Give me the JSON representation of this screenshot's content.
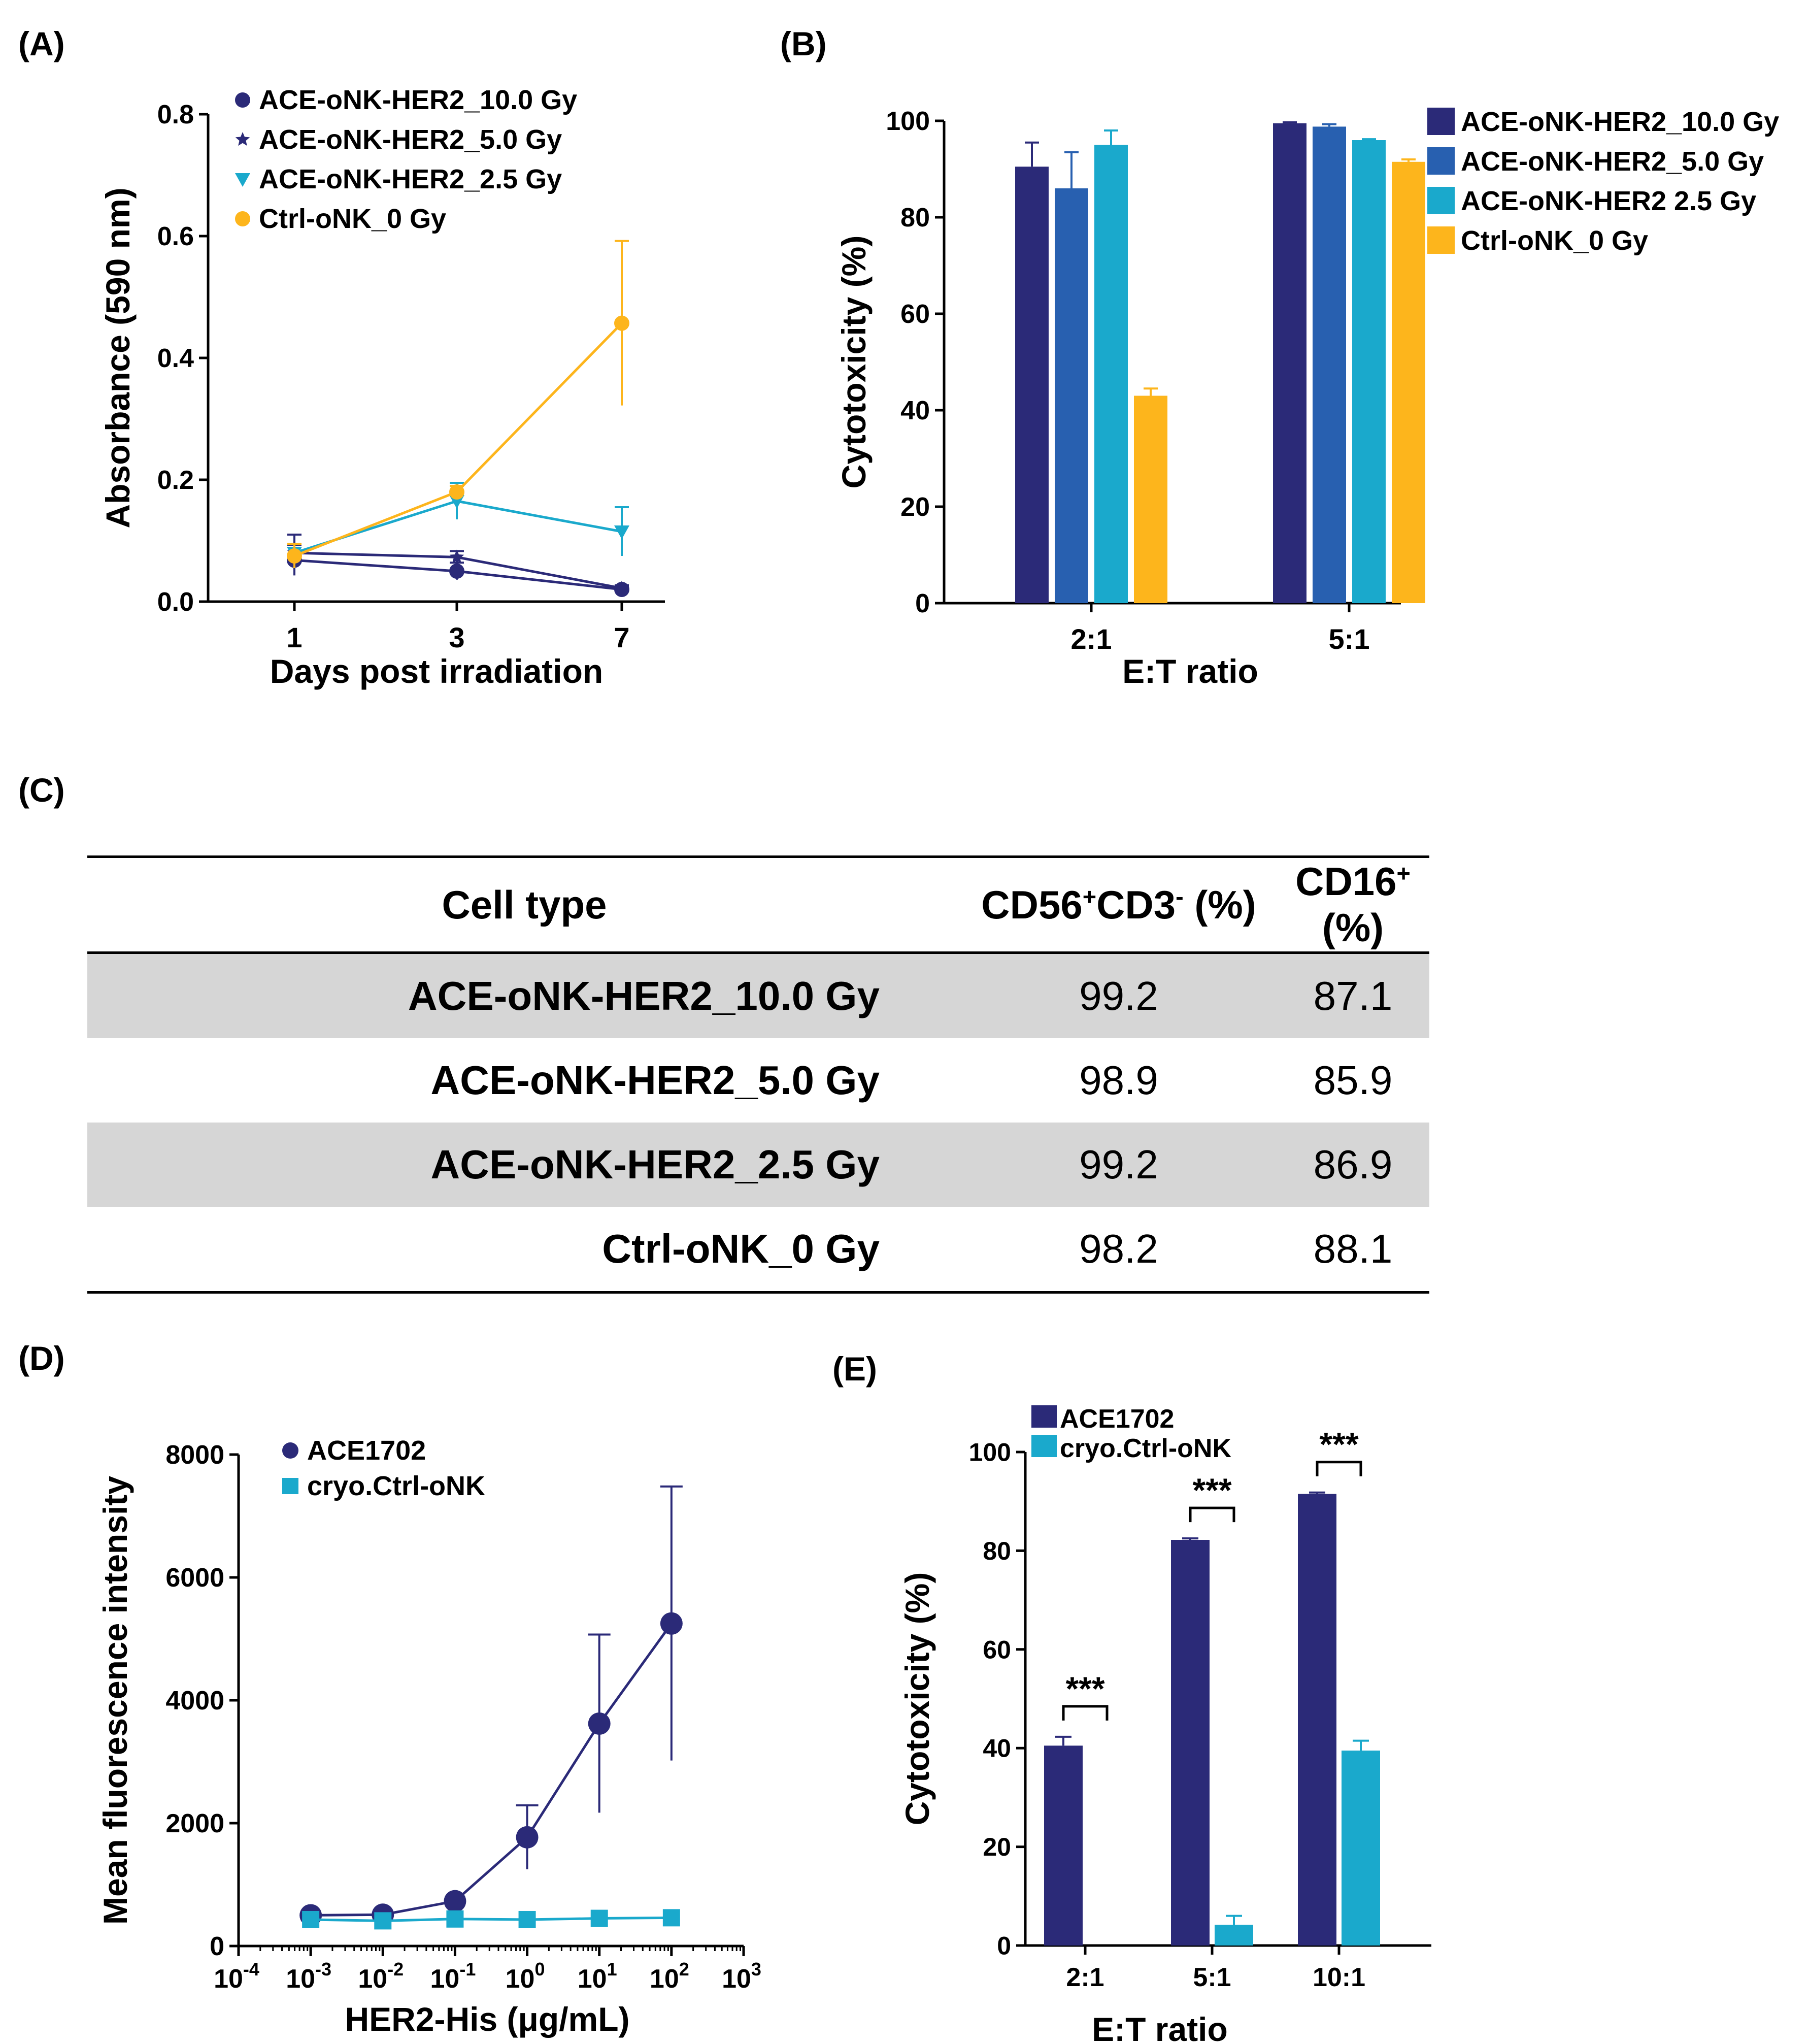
{
  "panels": {
    "a": "(A)",
    "b": "(B)",
    "c": "(C)",
    "d": "(D)",
    "e": "(E)"
  },
  "colors": {
    "navy": "#2b2a78",
    "blue": "#2860b0",
    "cyan": "#1aa9cc",
    "orange": "#fdb51c"
  },
  "chart_data": [
    {
      "id": "A",
      "type": "line",
      "xlabel": "Days post irradiation",
      "ylabel": "Absorbance (590 nm)",
      "categories": [
        "1",
        "3",
        "7"
      ],
      "ylim": [
        0,
        0.8
      ],
      "yticks": [
        "0.0",
        "0.2",
        "0.4",
        "0.6",
        "0.8"
      ],
      "series": [
        {
          "name": "ACE-oNK-HER2_10.0 Gy",
          "marker": "circle",
          "color": "#2b2a78",
          "values": [
            0.068,
            0.05,
            0.02
          ],
          "err": [
            0.025,
            0.014,
            0.005
          ]
        },
        {
          "name": "ACE-oNK-HER2_5.0 Gy",
          "marker": "star",
          "color": "#2b2a78",
          "values": [
            0.08,
            0.073,
            0.022
          ],
          "err": [
            0.03,
            0.01,
            0.005
          ]
        },
        {
          "name": "ACE-oNK-HER2_2.5 Gy",
          "marker": "triangle-down",
          "color": "#1aa9cc",
          "values": [
            0.08,
            0.165,
            0.115
          ],
          "err": [
            0.015,
            0.03,
            0.04
          ]
        },
        {
          "name": "Ctrl-oNK_0 Gy",
          "marker": "circle",
          "color": "#fdb51c",
          "values": [
            0.075,
            0.18,
            0.457
          ],
          "err": [
            0.02,
            0.01,
            0.135
          ]
        }
      ]
    },
    {
      "id": "B",
      "type": "bar",
      "xlabel": "E:T ratio",
      "ylabel": "Cytotoxicity (%)",
      "categories": [
        "2:1",
        "5:1"
      ],
      "ylim": [
        0,
        100
      ],
      "yticks": [
        "0",
        "20",
        "40",
        "60",
        "80",
        "100"
      ],
      "series": [
        {
          "name": "ACE-oNK-HER2_10.0 Gy",
          "color": "#2b2a78",
          "values": [
            90.5,
            99.5
          ],
          "err": [
            5,
            0.2
          ]
        },
        {
          "name": "ACE-oNK-HER2_5.0 Gy",
          "color": "#2860b0",
          "values": [
            86,
            98.8
          ],
          "err": [
            7.5,
            0.5
          ]
        },
        {
          "name": "ACE-oNK-HER2  2.5 Gy",
          "color": "#1aa9cc",
          "values": [
            95,
            96
          ],
          "err": [
            3,
            0.2
          ]
        },
        {
          "name": "Ctrl-oNK_0 Gy",
          "color": "#fdb51c",
          "values": [
            43,
            91.5
          ],
          "err": [
            1.5,
            0.5
          ]
        }
      ]
    },
    {
      "id": "D",
      "type": "line",
      "xlabel": "HER2-His (μg/mL)",
      "ylabel": "Mean fluorescence intensity",
      "xscale": "log10",
      "xlim_exp": [
        -4,
        3
      ],
      "xtick_base": "10",
      "xtick_exps": [
        "-4",
        "-3",
        "-2",
        "-1",
        "0",
        "1",
        "2",
        "3"
      ],
      "ylim": [
        0,
        8000
      ],
      "yticks": [
        "0",
        "2000",
        "4000",
        "6000",
        "8000"
      ],
      "x": [
        0.001,
        0.01,
        0.1,
        1,
        10,
        100
      ],
      "series": [
        {
          "name": "ACE1702",
          "marker": "circle",
          "color": "#2b2a78",
          "values": [
            500,
            510,
            730,
            1770,
            3620,
            5250
          ],
          "err": [
            0,
            0,
            0,
            520,
            1450,
            2230
          ]
        },
        {
          "name": "cryo.Ctrl-oNK",
          "marker": "square",
          "color": "#1aa9cc",
          "values": [
            430,
            410,
            440,
            430,
            450,
            460
          ],
          "err": [
            0,
            0,
            0,
            0,
            0,
            0
          ]
        }
      ]
    },
    {
      "id": "E",
      "type": "bar",
      "xlabel": "E:T ratio",
      "ylabel": "Cytotoxicity (%)",
      "categories": [
        "2:1",
        "5:1",
        "10:1"
      ],
      "ylim": [
        0,
        100
      ],
      "yticks": [
        "0",
        "20",
        "40",
        "60",
        "80",
        "100"
      ],
      "significance": [
        "***",
        "***",
        "***"
      ],
      "series": [
        {
          "name": "ACE1702",
          "color": "#2b2a78",
          "values": [
            40.5,
            82.2,
            91.5
          ],
          "err": [
            1.8,
            0.3,
            0.3
          ]
        },
        {
          "name": "cryo.Ctrl-oNK",
          "color": "#1aa9cc",
          "values": [
            0,
            4.2,
            39.5
          ],
          "err": [
            0,
            1.8,
            2
          ]
        }
      ]
    }
  ],
  "table": {
    "headers": {
      "cell_type": "Cell type",
      "cd56_main": "CD56",
      "cd56_sup": "+",
      "cd3_main": "CD3",
      "cd3_sup": "-",
      "cd56_unit": " (%)",
      "cd16_main": "CD16",
      "cd16_sup": "+",
      "cd16_unit": " (%)"
    },
    "rows": [
      {
        "cell_type": "ACE-oNK-HER2_10.0 Gy",
        "cd56cd3": "99.2",
        "cd16": "87.1"
      },
      {
        "cell_type": "ACE-oNK-HER2_5.0 Gy",
        "cd56cd3": "98.9",
        "cd16": "85.9"
      },
      {
        "cell_type": "ACE-oNK-HER2_2.5 Gy",
        "cd56cd3": "99.2",
        "cd16": "86.9"
      },
      {
        "cell_type": "Ctrl-oNK_0 Gy",
        "cd56cd3": "98.2",
        "cd16": "88.1"
      }
    ]
  }
}
